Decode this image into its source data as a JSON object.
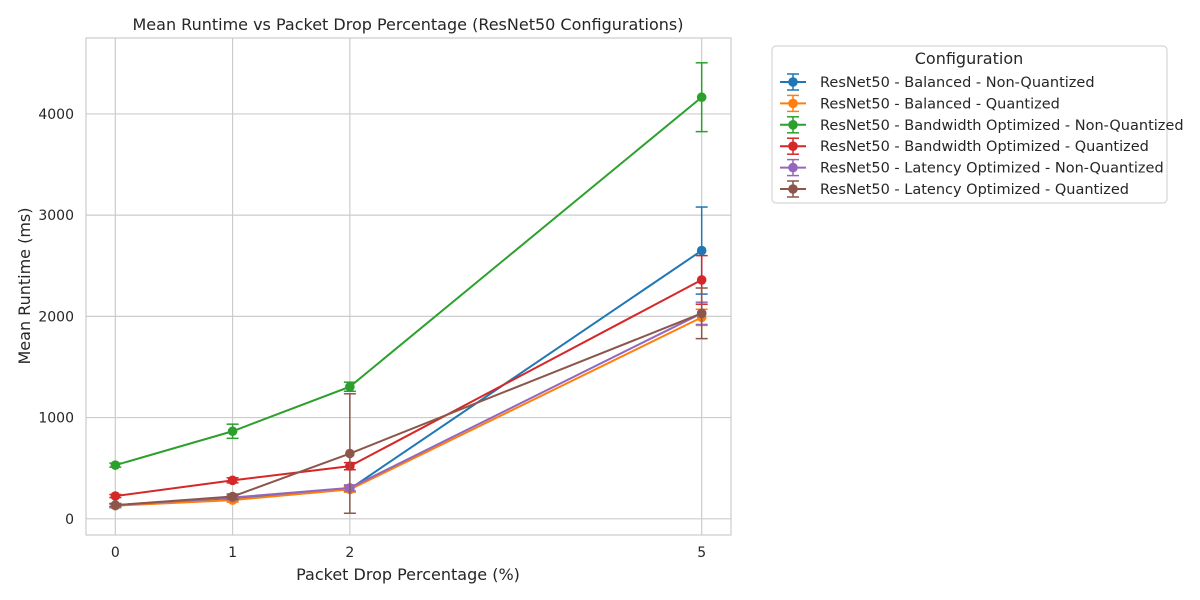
{
  "chart_data": {
    "type": "line",
    "title": "Mean Runtime vs Packet Drop Percentage (ResNet50 Configurations)",
    "xlabel": "Packet Drop Percentage (%)",
    "ylabel": "Mean Runtime (ms)",
    "x": [
      0,
      1,
      2,
      5
    ],
    "xlim": [
      -0.25,
      5.25
    ],
    "ylim": [
      -160,
      4750
    ],
    "yticks": [
      0,
      1000,
      2000,
      3000,
      4000
    ],
    "grid": true,
    "legend": {
      "title": "Configuration",
      "placement": "outside-right"
    },
    "series": [
      {
        "name": "ResNet50 - Balanced - Non-Quantized",
        "color": "#1f77b4",
        "values": [
          130,
          205,
          295,
          2650
        ],
        "errors": [
          20,
          25,
          30,
          430
        ]
      },
      {
        "name": "ResNet50 - Balanced - Quantized",
        "color": "#ff7f0e",
        "values": [
          130,
          185,
          290,
          1990
        ],
        "errors": [
          15,
          20,
          25,
          80
        ]
      },
      {
        "name": "ResNet50 - Bandwidth Optimized - Non-Quantized",
        "color": "#2ca02c",
        "values": [
          530,
          865,
          1305,
          4165
        ],
        "errors": [
          20,
          70,
          45,
          340
        ]
      },
      {
        "name": "ResNet50 - Bandwidth Optimized - Quantized",
        "color": "#d62728",
        "values": [
          225,
          380,
          520,
          2360
        ],
        "errors": [
          15,
          25,
          35,
          240
        ]
      },
      {
        "name": "ResNet50 - Latency Optimized - Non-Quantized",
        "color": "#9467bd",
        "values": [
          135,
          210,
          305,
          2030
        ],
        "errors": [
          15,
          20,
          30,
          110
        ]
      },
      {
        "name": "ResNet50 - Latency Optimized - Quantized",
        "color": "#8c564b",
        "values": [
          135,
          220,
          645,
          2030
        ],
        "errors": [
          15,
          25,
          590,
          250
        ]
      }
    ]
  }
}
